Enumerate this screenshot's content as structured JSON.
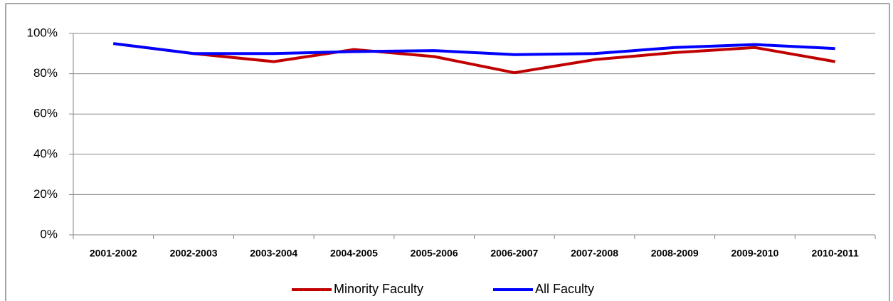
{
  "chart_data": {
    "type": "line",
    "categories": [
      "2001-2002",
      "2002-2003",
      "2003-2004",
      "2004-2005",
      "2005-2006",
      "2006-2007",
      "2007-2008",
      "2008-2009",
      "2009-2010",
      "2010-2011"
    ],
    "series": [
      {
        "name": "Minority Faculty",
        "color": "#c00000",
        "values": [
          95,
          90,
          86,
          92,
          88.5,
          80.5,
          87,
          90.5,
          93,
          86
        ]
      },
      {
        "name": "All Faculty",
        "color": "#0000ff",
        "values": [
          95,
          90,
          90,
          91,
          91.5,
          89.5,
          90,
          93,
          94.5,
          92.5
        ]
      }
    ],
    "ylim": [
      0,
      100
    ],
    "yticks": [
      {
        "value": 0,
        "label": "0%"
      },
      {
        "value": 20,
        "label": "20%"
      },
      {
        "value": 40,
        "label": "40%"
      },
      {
        "value": 60,
        "label": "60%"
      },
      {
        "value": 80,
        "label": "80%"
      },
      {
        "value": 100,
        "label": "100%"
      }
    ],
    "grid": true,
    "legend": "bottom"
  }
}
